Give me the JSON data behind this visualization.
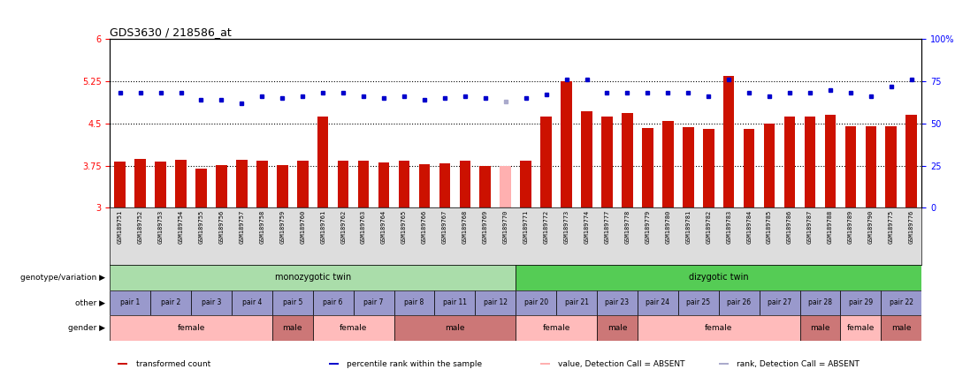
{
  "title": "GDS3630 / 218586_at",
  "samples": [
    "GSM189751",
    "GSM189752",
    "GSM189753",
    "GSM189754",
    "GSM189755",
    "GSM189756",
    "GSM189757",
    "GSM189758",
    "GSM189759",
    "GSM189760",
    "GSM189761",
    "GSM189762",
    "GSM189763",
    "GSM189764",
    "GSM189765",
    "GSM189766",
    "GSM189767",
    "GSM189768",
    "GSM189769",
    "GSM189770",
    "GSM189771",
    "GSM189772",
    "GSM189773",
    "GSM189774",
    "GSM189777",
    "GSM189778",
    "GSM189779",
    "GSM189780",
    "GSM189781",
    "GSM189782",
    "GSM189783",
    "GSM189784",
    "GSM189785",
    "GSM189786",
    "GSM189787",
    "GSM189788",
    "GSM189789",
    "GSM189790",
    "GSM189775",
    "GSM189776"
  ],
  "bar_values": [
    3.82,
    3.87,
    3.82,
    3.85,
    3.7,
    3.76,
    3.85,
    3.83,
    3.76,
    3.83,
    4.62,
    3.83,
    3.83,
    3.8,
    3.83,
    3.77,
    3.79,
    3.83,
    3.75,
    3.75,
    3.83,
    4.62,
    5.25,
    4.72,
    4.62,
    4.68,
    4.42,
    4.55,
    4.44,
    4.4,
    5.35,
    4.4,
    4.5,
    4.62,
    4.62,
    4.65,
    4.45,
    4.45,
    4.45,
    4.65
  ],
  "percentile_values": [
    68,
    68,
    68,
    68,
    64,
    64,
    62,
    66,
    65,
    66,
    68,
    68,
    66,
    65,
    66,
    64,
    65,
    66,
    65,
    63,
    65,
    67,
    76,
    76,
    68,
    68,
    68,
    68,
    68,
    66,
    76,
    68,
    66,
    68,
    68,
    70,
    68,
    66,
    72,
    76
  ],
  "absent_indices": [
    19
  ],
  "ylim_left": [
    3.0,
    6.0
  ],
  "ylim_right": [
    0,
    100
  ],
  "yticks_left": [
    3.0,
    3.75,
    4.5,
    5.25,
    6.0
  ],
  "yticks_right": [
    0,
    25,
    50,
    75,
    100
  ],
  "ytick_labels_left": [
    "3",
    "3.75",
    "4.5",
    "5.25",
    "6"
  ],
  "ytick_labels_right": [
    "0",
    "25",
    "50",
    "75",
    "100%"
  ],
  "hlines": [
    3.75,
    4.5,
    5.25
  ],
  "bar_color": "#CC1100",
  "bar_color_absent": "#FFB0B0",
  "blue_color": "#0000CC",
  "blue_color_absent": "#AAAACC",
  "genotype_segments": [
    {
      "text": "monozygotic twin",
      "start": 0,
      "end": 20,
      "color": "#AADDAA"
    },
    {
      "text": "dizygotic twin",
      "start": 20,
      "end": 40,
      "color": "#55CC55"
    }
  ],
  "genotype_label": "genotype/variation",
  "other_pairs": [
    "pair 1",
    "pair 2",
    "pair 3",
    "pair 4",
    "pair 5",
    "pair 6",
    "pair 7",
    "pair 8",
    "pair 11",
    "pair 12",
    "pair 20",
    "pair 21",
    "pair 23",
    "pair 24",
    "pair 25",
    "pair 26",
    "pair 27",
    "pair 28",
    "pair 29",
    "pair 22"
  ],
  "other_color": "#9999CC",
  "other_label": "other",
  "gender_segments": [
    {
      "text": "female",
      "start": 0,
      "end": 8,
      "color": "#FFBBBB"
    },
    {
      "text": "male",
      "start": 8,
      "end": 10,
      "color": "#CC7777"
    },
    {
      "text": "female",
      "start": 10,
      "end": 14,
      "color": "#FFBBBB"
    },
    {
      "text": "male",
      "start": 14,
      "end": 20,
      "color": "#CC7777"
    },
    {
      "text": "female",
      "start": 20,
      "end": 24,
      "color": "#FFBBBB"
    },
    {
      "text": "male",
      "start": 24,
      "end": 26,
      "color": "#CC7777"
    },
    {
      "text": "female",
      "start": 26,
      "end": 34,
      "color": "#FFBBBB"
    },
    {
      "text": "male",
      "start": 34,
      "end": 36,
      "color": "#CC7777"
    },
    {
      "text": "female",
      "start": 36,
      "end": 38,
      "color": "#FFBBBB"
    },
    {
      "text": "male",
      "start": 38,
      "end": 40,
      "color": "#CC7777"
    }
  ],
  "gender_label": "gender",
  "legend_items": [
    {
      "color": "#CC1100",
      "label": "transformed count"
    },
    {
      "color": "#0000CC",
      "label": "percentile rank within the sample"
    },
    {
      "color": "#FFB0B0",
      "label": "value, Detection Call = ABSENT"
    },
    {
      "color": "#AAAACC",
      "label": "rank, Detection Call = ABSENT"
    }
  ],
  "background_color": "#FFFFFF",
  "xticklabel_bg": "#DDDDDD"
}
